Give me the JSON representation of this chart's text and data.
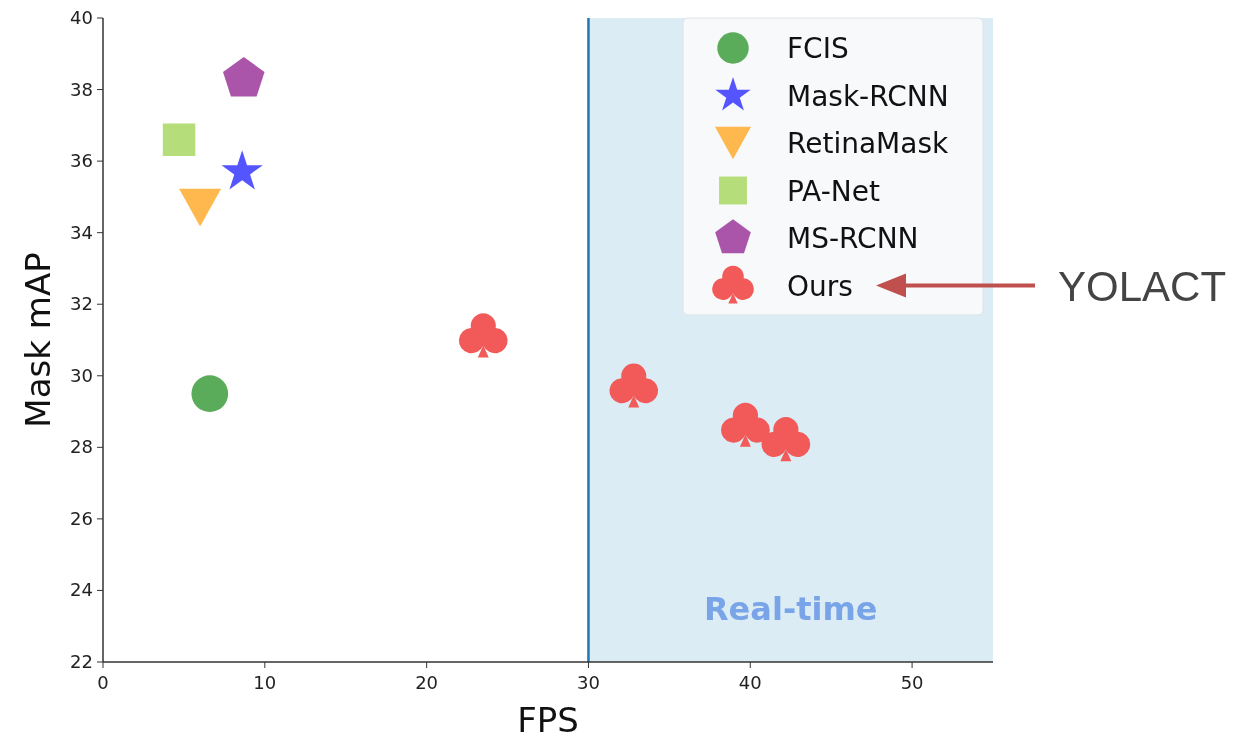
{
  "chart_data": {
    "type": "scatter",
    "xlabel": "FPS",
    "ylabel": "Mask mAP",
    "xlim": [
      0,
      55
    ],
    "ylim": [
      22,
      40
    ],
    "xticks": [
      0,
      10,
      20,
      30,
      40,
      50
    ],
    "yticks": [
      22,
      24,
      26,
      28,
      30,
      32,
      34,
      36,
      38,
      40
    ],
    "grid": false,
    "legend": "top right",
    "series": [
      {
        "name": "FCIS",
        "color": "#5aab5a",
        "marker": "circle",
        "x": [
          6.6
        ],
        "values": [
          29.5
        ]
      },
      {
        "name": "Mask-RCNN",
        "color": "#5555ff",
        "marker": "star",
        "x": [
          8.6
        ],
        "values": [
          35.7
        ]
      },
      {
        "name": "RetinaMask",
        "color": "#ffb84d",
        "x": [
          6.0
        ],
        "values": [
          34.7
        ]
      },
      {
        "name": "PA-Net",
        "color": "#b5dd7a",
        "marker": "square",
        "x": [
          4.7
        ],
        "values": [
          36.6
        ]
      },
      {
        "name": "MS-RCNN",
        "color": "#aa55aa",
        "x": [
          8.7
        ],
        "values": [
          38.3
        ]
      },
      {
        "name": "Ours",
        "color": "#f25a5a",
        "x": [
          23.5,
          32.8,
          39.7,
          42.2
        ],
        "values": [
          31.1,
          29.7,
          28.6,
          28.2
        ]
      }
    ],
    "ref_lines": [
      {
        "axis": "x",
        "value": 30,
        "color": "#1f77b4"
      }
    ],
    "bands": [
      {
        "axis": "x",
        "from": 30,
        "to": 55,
        "label": "Real-time",
        "color": "#dbecf4"
      }
    ],
    "annotations": [
      "YOLACT"
    ]
  }
}
